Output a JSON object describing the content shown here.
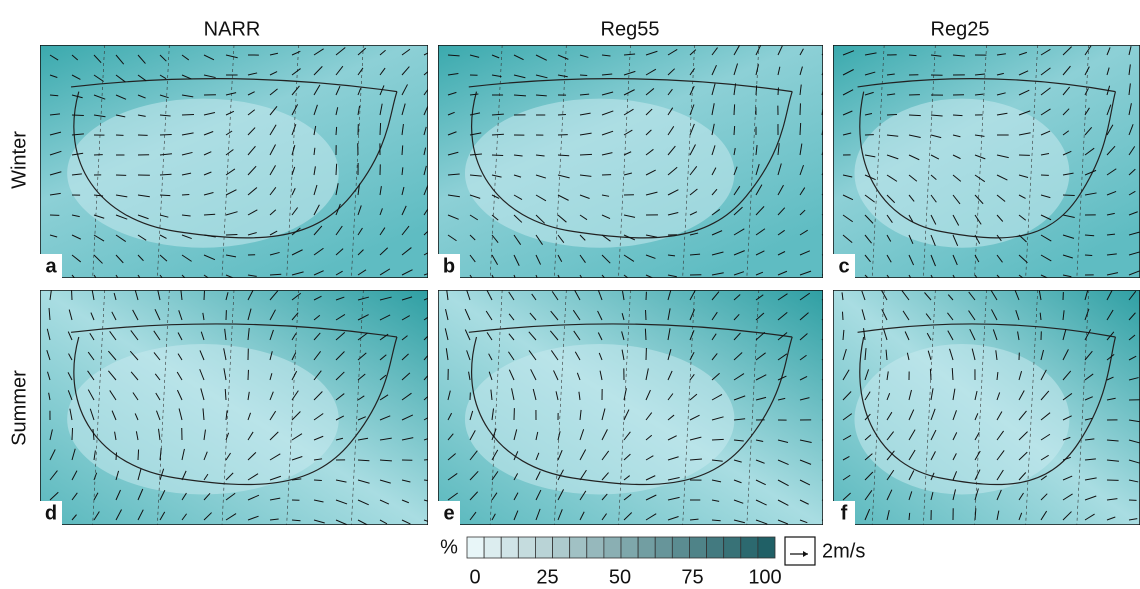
{
  "columns": [
    "NARR",
    "Reg55",
    "Reg25"
  ],
  "rows": [
    "Winter",
    "Summer"
  ],
  "panels": [
    "a",
    "b",
    "c",
    "d",
    "e",
    "f"
  ],
  "colorbar": {
    "unit": "%",
    "ticks": [
      0,
      25,
      50,
      75,
      100
    ]
  },
  "vector_legend": "2m/s"
}
